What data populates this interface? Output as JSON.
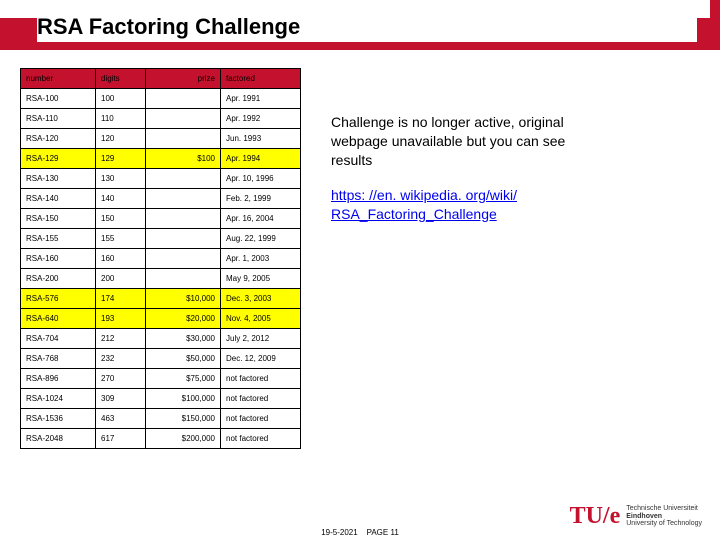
{
  "title": "RSA Factoring Challenge",
  "table": {
    "headers": [
      "number",
      "digits",
      "prize",
      "factored"
    ],
    "rows": [
      {
        "number": "RSA-100",
        "digits": "100",
        "prize": "",
        "factored": "Apr. 1991",
        "hl": false
      },
      {
        "number": "RSA-110",
        "digits": "110",
        "prize": "",
        "factored": "Apr. 1992",
        "hl": false
      },
      {
        "number": "RSA-120",
        "digits": "120",
        "prize": "",
        "factored": "Jun. 1993",
        "hl": false
      },
      {
        "number": "RSA-129",
        "digits": "129",
        "prize": "$100",
        "factored": "Apr. 1994",
        "hl": true
      },
      {
        "number": "RSA-130",
        "digits": "130",
        "prize": "",
        "factored": "Apr. 10, 1996",
        "hl": false
      },
      {
        "number": "RSA-140",
        "digits": "140",
        "prize": "",
        "factored": "Feb. 2, 1999",
        "hl": false
      },
      {
        "number": "RSA-150",
        "digits": "150",
        "prize": "",
        "factored": "Apr. 16, 2004",
        "hl": false
      },
      {
        "number": "RSA-155",
        "digits": "155",
        "prize": "",
        "factored": "Aug. 22, 1999",
        "hl": false
      },
      {
        "number": "RSA-160",
        "digits": "160",
        "prize": "",
        "factored": "Apr. 1, 2003",
        "hl": false
      },
      {
        "number": "RSA-200",
        "digits": "200",
        "prize": "",
        "factored": "May 9, 2005",
        "hl": false
      },
      {
        "number": "RSA-576",
        "digits": "174",
        "prize": "$10,000",
        "factored": "Dec. 3, 2003",
        "hl": true
      },
      {
        "number": "RSA-640",
        "digits": "193",
        "prize": "$20,000",
        "factored": "Nov. 4, 2005",
        "hl": true
      },
      {
        "number": "RSA-704",
        "digits": "212",
        "prize": "$30,000",
        "factored": "July 2, 2012",
        "hl": false
      },
      {
        "number": "RSA-768",
        "digits": "232",
        "prize": "$50,000",
        "factored": "Dec. 12, 2009",
        "hl": false
      },
      {
        "number": "RSA-896",
        "digits": "270",
        "prize": "$75,000",
        "factored": "not factored",
        "hl": false
      },
      {
        "number": "RSA-1024",
        "digits": "309",
        "prize": "$100,000",
        "factored": "not factored",
        "hl": false
      },
      {
        "number": "RSA-1536",
        "digits": "463",
        "prize": "$150,000",
        "factored": "not factored",
        "hl": false
      },
      {
        "number": "RSA-2048",
        "digits": "617",
        "prize": "$200,000",
        "factored": "not factored",
        "hl": false
      }
    ]
  },
  "side": {
    "note": "Challenge is no longer active, original webpage unavailable but you can see results",
    "link_text": "https: //en. wikipedia. org/wiki/ RSA_Factoring_Challenge",
    "link_href": "#"
  },
  "footer": {
    "date": "19-5-2021",
    "page": "PAGE 11"
  },
  "logo": {
    "mark": "TU/e",
    "line1": "Technische Universiteit",
    "line2": "Eindhoven",
    "line3": "University of Technology"
  },
  "colors": {
    "brand": "#c4122e",
    "highlight": "#ffff00",
    "bg": "#ffffff"
  }
}
